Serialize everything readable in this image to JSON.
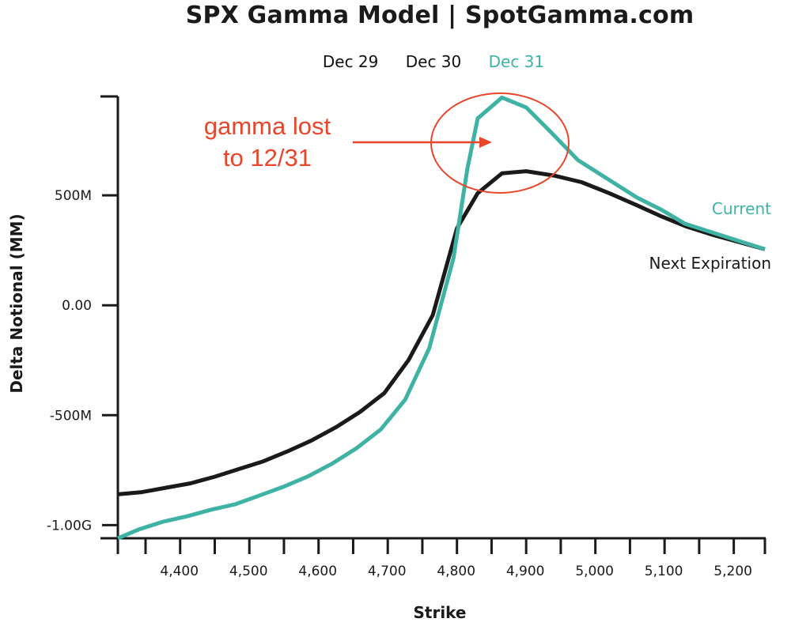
{
  "header": {
    "title": "SPX Gamma Model | SpotGamma.com",
    "date_tabs": [
      {
        "label": "Dec 29",
        "active": false
      },
      {
        "label": "Dec 30",
        "active": false
      },
      {
        "label": "Dec 31",
        "active": true
      }
    ]
  },
  "colors": {
    "current": "#3fb3a3",
    "next": "#1a1a1a",
    "annotation": "#e8452a",
    "axis": "#1a1a1a"
  },
  "chart_data": {
    "type": "line",
    "xlabel": "Strike",
    "ylabel": "Delta Notional (MM)",
    "xlim": [
      4310,
      5245
    ],
    "ylim": [
      -1060,
      950
    ],
    "x_ticks": [
      {
        "value": 4400,
        "label": "4,400"
      },
      {
        "value": 4500,
        "label": "4,500"
      },
      {
        "value": 4600,
        "label": "4,600"
      },
      {
        "value": 4700,
        "label": "4,700"
      },
      {
        "value": 4800,
        "label": "4,800"
      },
      {
        "value": 4900,
        "label": "4,900"
      },
      {
        "value": 5000,
        "label": "5,000"
      },
      {
        "value": 5100,
        "label": "5,100"
      },
      {
        "value": 5200,
        "label": "5,200"
      }
    ],
    "y_ticks": [
      {
        "value": 500,
        "label": "500M"
      },
      {
        "value": 0,
        "label": "0.00"
      },
      {
        "value": -500,
        "label": "-500M"
      },
      {
        "value": -1000,
        "label": "-1.00G"
      }
    ],
    "series": [
      {
        "name": "Current",
        "color": "#3fb3a3",
        "points": [
          [
            4310,
            -1060
          ],
          [
            4340,
            -1020
          ],
          [
            4375,
            -985
          ],
          [
            4410,
            -960
          ],
          [
            4445,
            -930
          ],
          [
            4480,
            -905
          ],
          [
            4515,
            -865
          ],
          [
            4550,
            -825
          ],
          [
            4585,
            -778
          ],
          [
            4620,
            -720
          ],
          [
            4655,
            -650
          ],
          [
            4690,
            -565
          ],
          [
            4725,
            -430
          ],
          [
            4760,
            -195
          ],
          [
            4795,
            215
          ],
          [
            4815,
            620
          ],
          [
            4830,
            850
          ],
          [
            4865,
            945
          ],
          [
            4900,
            900
          ],
          [
            4935,
            790
          ],
          [
            4975,
            660
          ],
          [
            5020,
            570
          ],
          [
            5060,
            490
          ],
          [
            5095,
            435
          ],
          [
            5130,
            370
          ],
          [
            5170,
            330
          ],
          [
            5210,
            290
          ],
          [
            5245,
            255
          ]
        ]
      },
      {
        "name": "Next Expiration",
        "color": "#1a1a1a",
        "points": [
          [
            4310,
            -860
          ],
          [
            4345,
            -850
          ],
          [
            4380,
            -830
          ],
          [
            4415,
            -810
          ],
          [
            4450,
            -780
          ],
          [
            4485,
            -745
          ],
          [
            4520,
            -710
          ],
          [
            4555,
            -665
          ],
          [
            4590,
            -615
          ],
          [
            4625,
            -555
          ],
          [
            4660,
            -485
          ],
          [
            4695,
            -400
          ],
          [
            4730,
            -250
          ],
          [
            4765,
            -45
          ],
          [
            4800,
            350
          ],
          [
            4830,
            510
          ],
          [
            4865,
            600
          ],
          [
            4900,
            610
          ],
          [
            4940,
            590
          ],
          [
            4980,
            560
          ],
          [
            5020,
            510
          ],
          [
            5060,
            455
          ],
          [
            5095,
            405
          ],
          [
            5130,
            360
          ],
          [
            5170,
            320
          ],
          [
            5210,
            285
          ],
          [
            5245,
            255
          ]
        ]
      }
    ],
    "annotation": {
      "lines": [
        "gamma lost",
        "to 12/31"
      ]
    }
  }
}
